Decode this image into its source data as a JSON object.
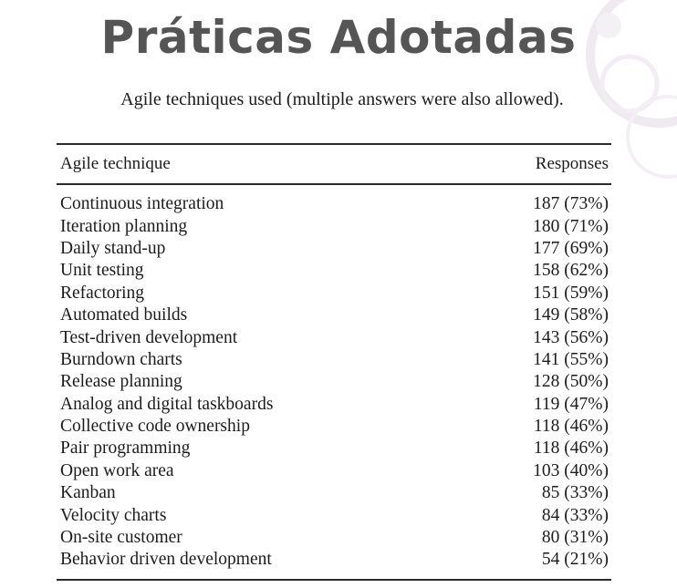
{
  "slide": {
    "title": "Práticas Adotadas"
  },
  "table": {
    "caption": "Agile techniques used (multiple answers were also allowed).",
    "columns": [
      "Agile technique",
      "Responses"
    ],
    "rows": [
      {
        "technique": "Continuous integration",
        "responses": "187 (73%)"
      },
      {
        "technique": "Iteration planning",
        "responses": "180 (71%)"
      },
      {
        "technique": "Daily stand-up",
        "responses": "177 (69%)"
      },
      {
        "technique": "Unit testing",
        "responses": "158 (62%)"
      },
      {
        "technique": "Refactoring",
        "responses": "151 (59%)"
      },
      {
        "technique": "Automated builds",
        "responses": "149 (58%)"
      },
      {
        "technique": "Test-driven development",
        "responses": "143 (56%)"
      },
      {
        "technique": "Burndown charts",
        "responses": "141 (55%)"
      },
      {
        "technique": "Release planning",
        "responses": "128 (50%)"
      },
      {
        "technique": "Analog and digital taskboards",
        "responses": "119 (47%)"
      },
      {
        "technique": "Collective code ownership",
        "responses": "118 (46%)"
      },
      {
        "technique": "Pair programming",
        "responses": "118 (46%)"
      },
      {
        "technique": "Open work area",
        "responses": "103 (40%)"
      },
      {
        "technique": "Kanban",
        "responses": "85 (33%)"
      },
      {
        "technique": "Velocity charts",
        "responses": "84 (33%)"
      },
      {
        "technique": "On-site customer",
        "responses": "80 (31%)"
      },
      {
        "technique": "Behavior driven development",
        "responses": "54 (21%)"
      }
    ]
  }
}
